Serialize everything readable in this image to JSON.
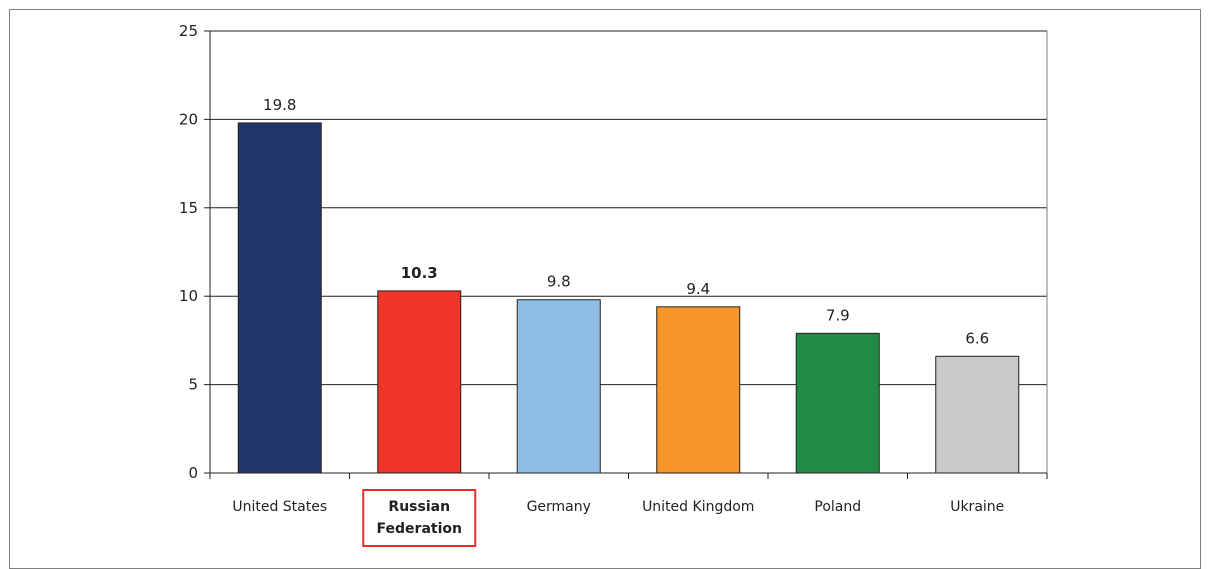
{
  "chart_data": {
    "type": "bar",
    "categories": [
      "United States",
      "Russian Federation",
      "Germany",
      "United Kingdom",
      "Poland",
      "Ukraine"
    ],
    "values": [
      19.8,
      10.3,
      9.8,
      9.4,
      7.9,
      6.6
    ],
    "data_labels": [
      "19.8",
      "10.3",
      "9.8",
      "9.4",
      "7.9",
      "6.6"
    ],
    "colors": [
      "#21366b",
      "#ef3429",
      "#8fbfe7",
      "#f7962a",
      "#218a45",
      "#c8c9cb"
    ],
    "highlight_index": 1,
    "highlight_color": "#e8302a",
    "ylim": [
      0,
      25
    ],
    "yticks": [
      "0",
      "5",
      "10",
      "15",
      "20",
      "25"
    ],
    "grid": true,
    "legend": "none"
  }
}
